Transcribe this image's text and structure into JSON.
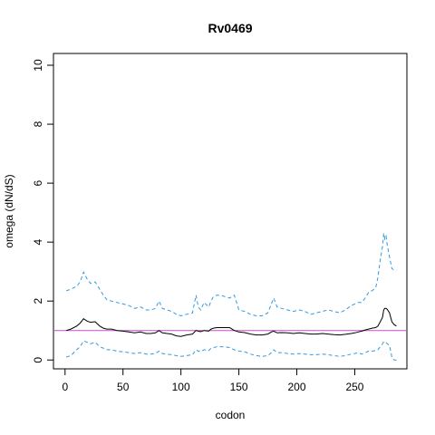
{
  "chart_data": {
    "type": "line",
    "title": "Rv0469",
    "xlabel": "codon",
    "ylabel": "omega (dN/dS)",
    "xlim": [
      -10,
      295
    ],
    "ylim": [
      -0.3,
      10.4
    ],
    "xticks": [
      0,
      50,
      100,
      150,
      200,
      250
    ],
    "yticks": [
      0,
      2,
      4,
      6,
      8,
      10
    ],
    "reference_line": {
      "y": 1,
      "color": "#c04fc0"
    },
    "grid": false,
    "series": [
      {
        "style": "dashed",
        "color": "#3399dd",
        "x": [
          1,
          5,
          10,
          13,
          16,
          19,
          22,
          26,
          30,
          33,
          36,
          40,
          45,
          50,
          55,
          60,
          65,
          70,
          74,
          78,
          81,
          84,
          88,
          92,
          96,
          100,
          105,
          110,
          113,
          115,
          117,
          120,
          124,
          126,
          128,
          131,
          134,
          138,
          142,
          146,
          150,
          155,
          160,
          165,
          170,
          175,
          178,
          180,
          183,
          187,
          192,
          197,
          202,
          207,
          212,
          217,
          222,
          227,
          232,
          237,
          242,
          247,
          250,
          253,
          256,
          259,
          262,
          265,
          268,
          270,
          272,
          274,
          275,
          276,
          277,
          278,
          280,
          282,
          284,
          286
        ],
        "y": [
          2.35,
          2.4,
          2.5,
          2.65,
          2.98,
          2.75,
          2.6,
          2.65,
          2.4,
          2.2,
          2.05,
          2.0,
          1.95,
          1.9,
          1.85,
          1.75,
          1.8,
          1.7,
          1.7,
          1.75,
          2.0,
          1.75,
          1.7,
          1.65,
          1.55,
          1.5,
          1.55,
          1.6,
          2.2,
          1.8,
          1.7,
          1.95,
          1.8,
          2.0,
          2.15,
          2.2,
          2.2,
          2.15,
          2.1,
          2.2,
          1.7,
          1.65,
          1.55,
          1.5,
          1.5,
          1.6,
          1.9,
          2.1,
          1.8,
          1.75,
          1.7,
          1.65,
          1.7,
          1.65,
          1.55,
          1.6,
          1.65,
          1.7,
          1.65,
          1.6,
          1.7,
          1.85,
          1.9,
          1.95,
          1.95,
          2.1,
          2.3,
          2.35,
          2.45,
          2.8,
          3.4,
          3.85,
          4.3,
          4.1,
          4.2,
          3.9,
          3.5,
          3.1,
          3.05,
          3.05
        ]
      },
      {
        "style": "solid",
        "color": "#000000",
        "x": [
          1,
          5,
          10,
          13,
          16,
          19,
          22,
          26,
          30,
          33,
          36,
          40,
          45,
          50,
          55,
          60,
          65,
          70,
          74,
          78,
          81,
          84,
          88,
          92,
          96,
          100,
          105,
          110,
          113,
          115,
          117,
          120,
          124,
          126,
          128,
          131,
          134,
          138,
          142,
          146,
          150,
          155,
          160,
          165,
          170,
          175,
          178,
          180,
          183,
          187,
          192,
          197,
          202,
          207,
          212,
          217,
          222,
          227,
          232,
          237,
          242,
          247,
          250,
          253,
          256,
          259,
          262,
          265,
          268,
          270,
          272,
          274,
          275,
          276,
          277,
          278,
          280,
          282,
          284,
          286
        ],
        "y": [
          1.0,
          1.05,
          1.15,
          1.25,
          1.4,
          1.32,
          1.28,
          1.3,
          1.15,
          1.08,
          1.05,
          1.05,
          1.0,
          0.98,
          0.95,
          0.92,
          0.95,
          0.9,
          0.9,
          0.92,
          1.0,
          0.92,
          0.9,
          0.88,
          0.82,
          0.8,
          0.85,
          0.88,
          1.0,
          0.98,
          0.96,
          1.0,
          0.98,
          1.05,
          1.08,
          1.1,
          1.1,
          1.1,
          1.1,
          1.0,
          0.95,
          0.93,
          0.88,
          0.85,
          0.85,
          0.88,
          0.95,
          0.98,
          0.92,
          0.93,
          0.92,
          0.9,
          0.92,
          0.9,
          0.88,
          0.88,
          0.9,
          0.88,
          0.86,
          0.85,
          0.87,
          0.9,
          0.92,
          0.95,
          0.98,
          1.02,
          1.05,
          1.08,
          1.1,
          1.15,
          1.3,
          1.45,
          1.7,
          1.75,
          1.75,
          1.72,
          1.6,
          1.3,
          1.2,
          1.15
        ]
      },
      {
        "style": "dashed",
        "color": "#3399dd",
        "x": [
          1,
          5,
          10,
          13,
          16,
          19,
          22,
          26,
          30,
          33,
          36,
          40,
          45,
          50,
          55,
          60,
          65,
          70,
          74,
          78,
          81,
          84,
          88,
          92,
          96,
          100,
          105,
          110,
          113,
          115,
          117,
          120,
          124,
          126,
          128,
          131,
          134,
          138,
          142,
          146,
          150,
          155,
          160,
          165,
          170,
          175,
          178,
          180,
          183,
          187,
          192,
          197,
          202,
          207,
          212,
          217,
          222,
          227,
          232,
          237,
          242,
          247,
          250,
          253,
          256,
          259,
          262,
          265,
          268,
          270,
          272,
          274,
          275,
          276,
          277,
          278,
          280,
          282,
          284,
          286
        ],
        "y": [
          0.1,
          0.15,
          0.35,
          0.45,
          0.65,
          0.6,
          0.55,
          0.6,
          0.45,
          0.4,
          0.35,
          0.35,
          0.3,
          0.28,
          0.25,
          0.22,
          0.25,
          0.2,
          0.2,
          0.22,
          0.3,
          0.22,
          0.2,
          0.18,
          0.15,
          0.12,
          0.15,
          0.18,
          0.35,
          0.3,
          0.28,
          0.35,
          0.32,
          0.4,
          0.42,
          0.45,
          0.45,
          0.45,
          0.42,
          0.35,
          0.3,
          0.28,
          0.2,
          0.15,
          0.12,
          0.15,
          0.25,
          0.35,
          0.25,
          0.25,
          0.22,
          0.2,
          0.22,
          0.2,
          0.18,
          0.18,
          0.2,
          0.18,
          0.15,
          0.12,
          0.15,
          0.2,
          0.22,
          0.25,
          0.2,
          0.25,
          0.3,
          0.3,
          0.32,
          0.35,
          0.45,
          0.55,
          0.62,
          0.6,
          0.6,
          0.55,
          0.5,
          0.1,
          0.0,
          0.0
        ]
      }
    ]
  }
}
